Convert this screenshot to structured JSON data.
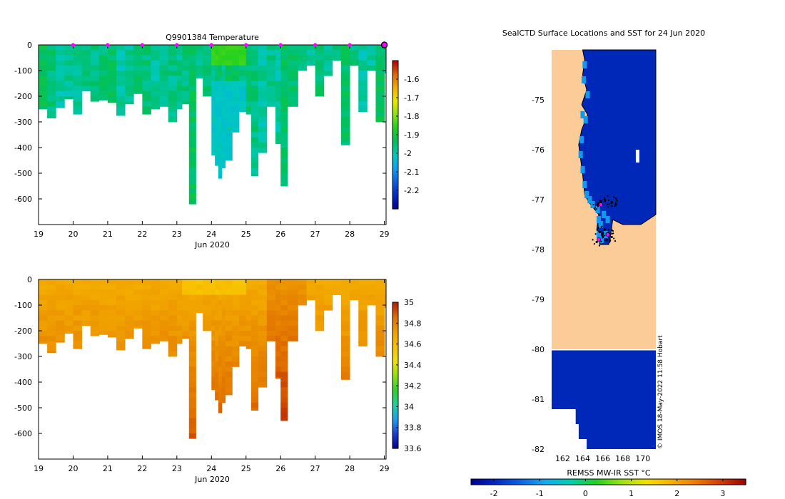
{
  "colors": {
    "temp": [
      "#00008f",
      "#0026c2",
      "#0a5ce0",
      "#0aa0f0",
      "#00c8c0",
      "#00c060",
      "#20d020",
      "#88e010",
      "#e8e800",
      "#f0b000",
      "#e06800",
      "#b40000"
    ],
    "sal": [
      "#00008f",
      "#1c3cd0",
      "#1aa0ee",
      "#20d0a0",
      "#30d030",
      "#90e010",
      "#f0e010",
      "#f8c000",
      "#f0a000",
      "#e07000",
      "#b41e00"
    ],
    "sst": [
      "#00008f",
      "#0028c8",
      "#0a64e6",
      "#14aaf0",
      "#00d0b0",
      "#20d020",
      "#98e010",
      "#f0e000",
      "#f8b000",
      "#f07800",
      "#d03c00",
      "#9a0000"
    ],
    "land": "#fccc98",
    "sea": "#0028b8"
  },
  "chart_data": [
    {
      "type": "heatmap",
      "title": "Q9901384  Temperature",
      "xlabel": "Jun 2020",
      "ylabel": "",
      "x_ticks": [
        "19",
        "20",
        "21",
        "22",
        "23",
        "24",
        "25",
        "26",
        "27",
        "28",
        "29"
      ],
      "y_ticks": [
        "0",
        "-100",
        "-200",
        "-300",
        "-400",
        "-500",
        "-600"
      ],
      "xlim": [
        19,
        29.05
      ],
      "ylim": [
        -700,
        0
      ],
      "colorbar_ticks": [
        "-1.6",
        "-1.7",
        "-1.8",
        "-1.9",
        "-2",
        "-2.1",
        "-2.2"
      ],
      "colorbar_range": [
        -2.3,
        -1.5
      ],
      "profile_markers_x": [
        20,
        21,
        22,
        23,
        24,
        25,
        26,
        27,
        28
      ],
      "end_marker_x": 29,
      "profile_days": [
        19.0,
        19.25,
        19.5,
        19.75,
        20.0,
        20.25,
        20.5,
        20.75,
        21.0,
        21.25,
        21.5,
        21.75,
        22.0,
        22.25,
        22.5,
        22.75,
        23.0,
        23.15,
        23.35,
        23.55,
        23.75,
        24.0,
        24.1,
        24.2,
        24.3,
        24.4,
        24.6,
        24.8,
        25.0,
        25.15,
        25.35,
        25.6,
        25.85,
        26.0,
        26.2,
        26.5,
        26.75,
        27.0,
        27.25,
        27.5,
        27.75,
        28.0,
        28.25,
        28.5,
        28.75,
        29.0
      ],
      "profile_depths": [
        250,
        285,
        245,
        210,
        270,
        180,
        220,
        215,
        225,
        275,
        230,
        190,
        270,
        250,
        240,
        300,
        250,
        230,
        620,
        130,
        200,
        430,
        470,
        520,
        480,
        450,
        340,
        260,
        270,
        510,
        420,
        240,
        385,
        550,
        240,
        100,
        80,
        200,
        120,
        60,
        390,
        80,
        260,
        100,
        300,
        110
      ],
      "temperature_range_c": [
        -2.05,
        -1.85
      ],
      "salinity_range_psu": [
        34.6,
        34.95
      ]
    },
    {
      "type": "heatmap",
      "title": "",
      "xlabel": "Jun 2020",
      "ylabel": "",
      "x_ticks": [
        "19",
        "20",
        "21",
        "22",
        "23",
        "24",
        "25",
        "26",
        "27",
        "28",
        "29"
      ],
      "y_ticks": [
        "0",
        "-100",
        "-200",
        "-300",
        "-400",
        "-500",
        "-600"
      ],
      "xlim": [
        19,
        29.05
      ],
      "ylim": [
        -700,
        0
      ],
      "colorbar_ticks": [
        "35",
        "34.8",
        "34.6",
        "34.4",
        "34.2",
        "34",
        "33.8",
        "33.6"
      ],
      "colorbar_range": [
        33.6,
        35
      ]
    },
    {
      "type": "heatmap",
      "title": "SealCTD Surface Locations and SST for 24 Jun 2020",
      "xlabel": "",
      "ylabel": "",
      "x_ticks": [
        "162",
        "164",
        "166",
        "168",
        "170"
      ],
      "y_ticks": [
        "-75",
        "-76",
        "-77",
        "-78",
        "-79",
        "-80",
        "-81",
        "-82"
      ],
      "xlim": [
        160.9,
        171.3
      ],
      "ylim": [
        -82,
        -74
      ],
      "colorbar_label": "REMSS MW-IR SST °C",
      "colorbar_ticks": [
        "-2",
        "-1",
        "0",
        "1",
        "2",
        "3"
      ],
      "colorbar_range": [
        -2.5,
        3.5
      ],
      "data_gap_lat_range": [
        -80,
        -79.98
      ],
      "sst_open_water_c": -1.9,
      "sst_coastal_c": -1.0,
      "seal_positions": [
        [
          165.5,
          -77.1
        ],
        [
          165.8,
          -77.05
        ],
        [
          166.2,
          -77.0
        ],
        [
          166.9,
          -77.05
        ],
        [
          167.3,
          -77.1
        ],
        [
          165.7,
          -77.65
        ],
        [
          166.0,
          -77.75
        ],
        [
          166.4,
          -77.8
        ],
        [
          166.6,
          -77.7
        ],
        [
          166.9,
          -77.75
        ],
        [
          166.2,
          -77.6
        ],
        [
          165.4,
          -77.85
        ]
      ],
      "highlight_positions": [
        [
          165.8,
          -77.1
        ],
        [
          166.5,
          -77.7
        ],
        [
          165.6,
          -77.8
        ]
      ],
      "vertical_note": "© IMOS 18-May-2022 11:58 Hobart"
    }
  ]
}
